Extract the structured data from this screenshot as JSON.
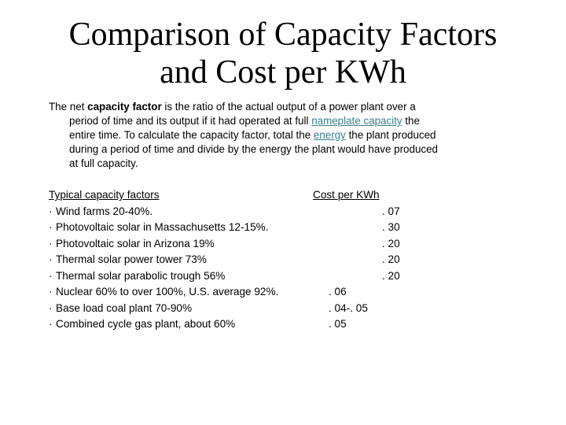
{
  "title": {
    "line1": "Comparison of Capacity Factors",
    "line2": "and Cost per KWh"
  },
  "intro": {
    "prefix": "The net ",
    "bold": "capacity factor",
    "line1_rest": " is the ratio of the actual output of a power plant over a",
    "line2_before_link": "period of time and its output if it had operated at full ",
    "link_nameplate": "nameplate capacity",
    "line2_after_link": " the",
    "line3_before_link": "entire time. To calculate the capacity factor, total the ",
    "link_energy": "energy",
    "line3_after_link": " the plant produced",
    "line4": "during a period of time and divide by the energy the plant would have produced",
    "line5": "at full capacity."
  },
  "table": {
    "header_left": "Typical capacity factors ",
    "header_right": " Cost per KWh",
    "bullet": "·",
    "rows": [
      {
        "label": "Wind farms 20-40%.",
        "cost": ". 07"
      },
      {
        "label": "Photovoltaic solar in Massachusetts 12-15%.",
        "cost": ". 30"
      },
      {
        "label": "Photovoltaic solar in Arizona 19%",
        "cost": ". 20"
      },
      {
        "label": "Thermal solar power tower 73%",
        "cost": ". 20"
      },
      {
        "label": "Thermal solar parabolic trough 56%",
        "cost": ". 20"
      },
      {
        "label": "Nuclear 60% to over 100%, U.S. average 92%.",
        "cost": ". 06"
      },
      {
        "label": "Base load coal plant 70-90%",
        "cost": ". 04-. 05"
      },
      {
        "label": "Combined cycle gas plant, about 60%",
        "cost": ". 05"
      }
    ]
  }
}
